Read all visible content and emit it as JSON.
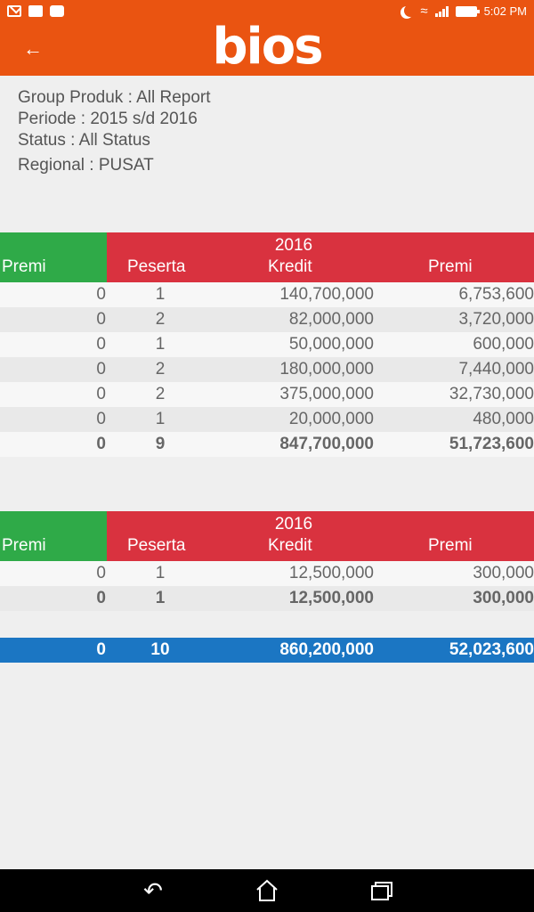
{
  "statusbar": {
    "time": "5:02 PM"
  },
  "appbar": {
    "logo_text": "bios",
    "back_glyph": "←"
  },
  "info": {
    "group": "Group Produk : All Report",
    "periode": "Periode : 2015 s/d 2016",
    "status": "Status : All Status",
    "regional": "Regional : PUSAT"
  },
  "table1": {
    "year": "2016",
    "headers": {
      "premi_left": "Premi",
      "peserta": "Peserta",
      "kredit": "Kredit",
      "premi_right": "Premi"
    },
    "rows": [
      {
        "premi_left": "0",
        "peserta": "1",
        "kredit": "140,700,000",
        "premi_right": "6,753,600"
      },
      {
        "premi_left": "0",
        "peserta": "2",
        "kredit": "82,000,000",
        "premi_right": "3,720,000"
      },
      {
        "premi_left": "0",
        "peserta": "1",
        "kredit": "50,000,000",
        "premi_right": "600,000"
      },
      {
        "premi_left": "0",
        "peserta": "2",
        "kredit": "180,000,000",
        "premi_right": "7,440,000"
      },
      {
        "premi_left": "0",
        "peserta": "2",
        "kredit": "375,000,000",
        "premi_right": "32,730,000"
      },
      {
        "premi_left": "0",
        "peserta": "1",
        "kredit": "20,000,000",
        "premi_right": "480,000"
      }
    ],
    "total": {
      "premi_left": "0",
      "peserta": "9",
      "kredit": "847,700,000",
      "premi_right": "51,723,600"
    }
  },
  "table2": {
    "year": "2016",
    "headers": {
      "premi_left": "Premi",
      "peserta": "Peserta",
      "kredit": "Kredit",
      "premi_right": "Premi"
    },
    "rows": [
      {
        "premi_left": "0",
        "peserta": "1",
        "kredit": "12,500,000",
        "premi_right": "300,000"
      }
    ],
    "total": {
      "premi_left": "0",
      "peserta": "1",
      "kredit": "12,500,000",
      "premi_right": "300,000"
    }
  },
  "grand_total": {
    "premi_left": "0",
    "peserta": "10",
    "kredit": "860,200,000",
    "premi_right": "52,023,600"
  },
  "colors": {
    "appbar": "#ea5411",
    "green": "#2faa48",
    "red": "#d9323f",
    "blue": "#1b76c3"
  },
  "icons": [
    "gmail-icon",
    "image-icon",
    "shopping-bag-icon",
    "moon-icon",
    "wifi-icon",
    "signal-icon",
    "battery-icon",
    "back-arrow-icon",
    "nav-back-icon",
    "nav-home-icon",
    "nav-recent-icon"
  ]
}
